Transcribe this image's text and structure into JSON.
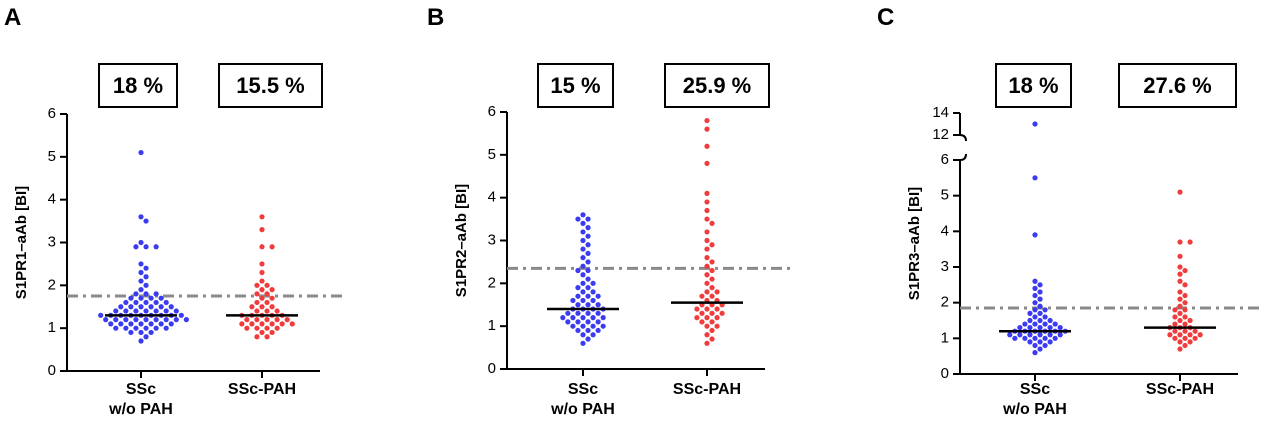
{
  "chart_data": [
    {
      "type": "swarm",
      "panel": "A",
      "ylabel": "S1PR1–aAb [BI]",
      "categories": [
        "SSc\nw/o PAH",
        "SSc-PAH"
      ],
      "annotations": [
        "18 %",
        "15.5 %"
      ],
      "ylim": [
        0,
        6
      ],
      "yticks": [
        0,
        1,
        2,
        3,
        4,
        5,
        6
      ],
      "medians": [
        1.3,
        1.3
      ],
      "cutoff": 1.75,
      "groups": [
        {
          "color": "#3b3bf2",
          "values": [
            5.1,
            3.6,
            3.5,
            3.0,
            2.9,
            2.9,
            2.9,
            2.5,
            2.4,
            2.3,
            2.2,
            2.1,
            2.0,
            1.9,
            1.8,
            1.8,
            1.8,
            1.7,
            1.7,
            1.7,
            1.7,
            1.6,
            1.6,
            1.6,
            1.6,
            1.6,
            1.5,
            1.5,
            1.5,
            1.5,
            1.5,
            1.5,
            1.4,
            1.4,
            1.4,
            1.4,
            1.4,
            1.4,
            1.4,
            1.3,
            1.3,
            1.3,
            1.3,
            1.3,
            1.3,
            1.3,
            1.3,
            1.3,
            1.2,
            1.2,
            1.2,
            1.2,
            1.2,
            1.2,
            1.2,
            1.2,
            1.2,
            1.1,
            1.1,
            1.1,
            1.1,
            1.1,
            1.1,
            1.1,
            1.0,
            1.0,
            1.0,
            1.0,
            1.0,
            1.0,
            0.9,
            0.9,
            0.9,
            0.8,
            0.7
          ]
        },
        {
          "color": "#f03c3c",
          "values": [
            3.6,
            3.3,
            2.9,
            2.9,
            2.5,
            2.3,
            2.1,
            2.0,
            2.0,
            1.9,
            1.9,
            1.8,
            1.8,
            1.7,
            1.7,
            1.6,
            1.6,
            1.5,
            1.5,
            1.5,
            1.4,
            1.4,
            1.4,
            1.3,
            1.3,
            1.3,
            1.3,
            1.3,
            1.2,
            1.2,
            1.2,
            1.2,
            1.2,
            1.1,
            1.1,
            1.1,
            1.1,
            1.1,
            1.1,
            1.0,
            1.0,
            1.0,
            1.0,
            0.9,
            0.9,
            0.8,
            0.8
          ]
        }
      ]
    },
    {
      "type": "swarm",
      "panel": "B",
      "ylabel": "S1PR2–aAb [BI]",
      "categories": [
        "SSc\nw/o PAH",
        "SSc-PAH"
      ],
      "annotations": [
        "15 %",
        "25.9 %"
      ],
      "ylim": [
        0,
        6
      ],
      "yticks": [
        0,
        1,
        2,
        3,
        4,
        5,
        6
      ],
      "medians": [
        1.4,
        1.55
      ],
      "cutoff": 2.35,
      "groups": [
        {
          "color": "#3b3bf2",
          "values": [
            3.6,
            3.5,
            3.5,
            3.4,
            3.3,
            3.2,
            3.1,
            3.0,
            2.9,
            2.8,
            2.7,
            2.6,
            2.5,
            2.4,
            2.3,
            2.3,
            2.2,
            2.1,
            2.0,
            2.0,
            1.9,
            1.9,
            1.8,
            1.8,
            1.7,
            1.7,
            1.7,
            1.6,
            1.6,
            1.6,
            1.5,
            1.5,
            1.5,
            1.4,
            1.4,
            1.4,
            1.4,
            1.3,
            1.3,
            1.3,
            1.3,
            1.2,
            1.2,
            1.2,
            1.2,
            1.2,
            1.1,
            1.1,
            1.1,
            1.1,
            1.0,
            1.0,
            1.0,
            1.0,
            0.9,
            0.9,
            0.9,
            0.8,
            0.8,
            0.7,
            0.6
          ]
        },
        {
          "color": "#f03c3c",
          "values": [
            5.8,
            5.6,
            5.2,
            4.8,
            4.1,
            3.9,
            3.7,
            3.5,
            3.4,
            3.2,
            3.0,
            2.9,
            2.8,
            2.6,
            2.5,
            2.4,
            2.3,
            2.2,
            2.1,
            2.0,
            1.9,
            1.8,
            1.8,
            1.7,
            1.7,
            1.6,
            1.6,
            1.5,
            1.5,
            1.5,
            1.4,
            1.4,
            1.4,
            1.3,
            1.3,
            1.3,
            1.2,
            1.2,
            1.2,
            1.1,
            1.1,
            1.0,
            1.0,
            0.9,
            0.8,
            0.7,
            0.6
          ]
        }
      ]
    },
    {
      "type": "swarm",
      "panel": "C",
      "ylabel": "S1PR3–aAb [BI]",
      "categories": [
        "SSc\nw/o PAH",
        "SSc-PAH"
      ],
      "annotations": [
        "18 %",
        "27.6 %"
      ],
      "ylim": [
        0,
        14
      ],
      "axis_break": [
        6,
        12
      ],
      "yticks": [
        0,
        1,
        2,
        3,
        4,
        5,
        6,
        12,
        14
      ],
      "medians": [
        1.2,
        1.3
      ],
      "cutoff": 1.85,
      "groups": [
        {
          "color": "#3b3bf2",
          "values": [
            13.0,
            5.5,
            3.9,
            2.6,
            2.5,
            2.4,
            2.3,
            2.2,
            2.1,
            2.0,
            1.9,
            1.8,
            1.8,
            1.7,
            1.7,
            1.6,
            1.6,
            1.5,
            1.5,
            1.5,
            1.4,
            1.4,
            1.4,
            1.4,
            1.3,
            1.3,
            1.3,
            1.3,
            1.3,
            1.2,
            1.2,
            1.2,
            1.2,
            1.2,
            1.2,
            1.1,
            1.1,
            1.1,
            1.1,
            1.1,
            1.1,
            1.0,
            1.0,
            1.0,
            1.0,
            1.0,
            0.9,
            0.9,
            0.9,
            0.8,
            0.8,
            0.7,
            0.6
          ]
        },
        {
          "color": "#f03c3c",
          "values": [
            5.1,
            3.7,
            3.7,
            3.3,
            3.0,
            2.9,
            2.8,
            2.6,
            2.5,
            2.3,
            2.2,
            2.1,
            2.0,
            1.9,
            1.8,
            1.8,
            1.7,
            1.6,
            1.6,
            1.5,
            1.5,
            1.4,
            1.4,
            1.3,
            1.3,
            1.3,
            1.2,
            1.2,
            1.2,
            1.1,
            1.1,
            1.1,
            1.1,
            1.0,
            1.0,
            1.0,
            0.9,
            0.9,
            0.8,
            0.7
          ]
        }
      ]
    }
  ]
}
